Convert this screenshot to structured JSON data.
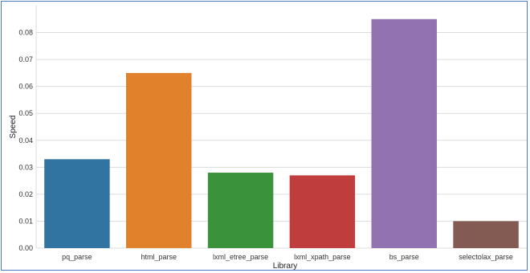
{
  "chart_data": {
    "type": "bar",
    "title": "",
    "xlabel": "Library",
    "ylabel": "Speed",
    "categories": [
      "pq_parse",
      "html_parse",
      "lxml_etree_parse",
      "lxml_xpath_parse",
      "bs_parse",
      "selectolax_parse"
    ],
    "values": [
      0.033,
      0.065,
      0.028,
      0.027,
      0.085,
      0.01
    ],
    "colors": [
      "#3274a1",
      "#e1812c",
      "#3a923a",
      "#c03d3e",
      "#9372b2",
      "#845b53"
    ],
    "yticks": [
      "0.00",
      "0.01",
      "0.02",
      "0.03",
      "0.04",
      "0.05",
      "0.06",
      "0.07",
      "0.08"
    ],
    "ylim": [
      0,
      0.09
    ],
    "grid": true,
    "legend": "none"
  }
}
